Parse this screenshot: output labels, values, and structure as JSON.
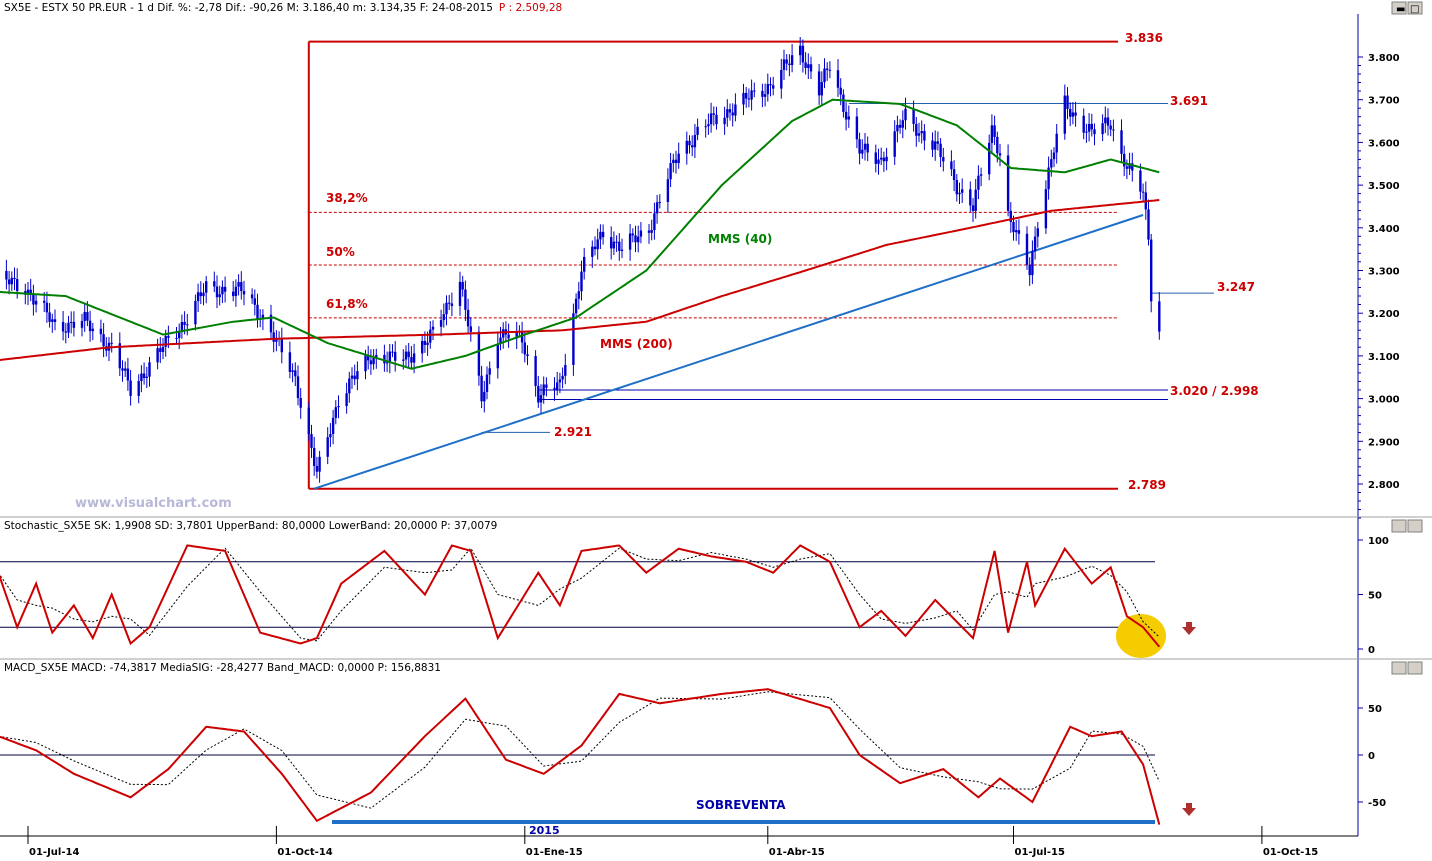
{
  "header": {
    "prefix": "SX5E - ESTX 50 PR.EUR - 1 d Dif. %: -2,78 Dif.: -90,26 M: 3.186,40 m: 3.134,35 F: 24-08-2015",
    "p_value": "P : 2.509,28"
  },
  "stoch_header": "Stochastic_SX5E SK: 1,9908 SD: 3,7801 UpperBand: 80,0000 LowerBand: 20,0000 P: 37,0079",
  "macd_header": "MACD_SX5E MACD: -74,3817 MediaSIG: -28,4277 Band_MACD: 0,0000 P: 156,8831",
  "watermark": "www.visualchart.com",
  "annotations": {
    "fib382": "38,2%",
    "fib50": "50%",
    "fib618": "61,8%",
    "mms40": "MMS (40)",
    "mms200": "MMS (200)",
    "lvl_top": "3.836",
    "lvl_3691": "3.691",
    "lvl_3247": "3.247",
    "lvl_support": "3.020 / 2.998",
    "lvl_2921": "2.921",
    "lvl_bottom": "2.789",
    "sobreventa": "SOBREVENTA",
    "year_marker": "2015"
  },
  "colors": {
    "candle": "#0000cc",
    "ma200": "#cc0000",
    "ma40": "#008000",
    "trendline": "#1e6fc8",
    "annotation": "#cc0000",
    "highlight": "#f5cc00"
  },
  "chart_data": [
    {
      "type": "candlestick",
      "title": "SX5E - ESTX 50 PR.EUR - 1 d",
      "y_ticks": [
        "3.800",
        "3.700",
        "3.600",
        "3.500",
        "3.400",
        "3.300",
        "3.200",
        "3.100",
        "3.000",
        "2.900",
        "2.800"
      ],
      "ylim": [
        2770,
        3880
      ],
      "x_ticks": [
        "01-Jul-14",
        "01-Oct-14",
        "01-Ene-15",
        "01-Abr-15",
        "01-Jul-15",
        "01-Oct-15"
      ],
      "x_dates": [
        "2014-07-01",
        "2014-10-01",
        "2015-01-01",
        "2015-04-01",
        "2015-07-01",
        "2015-10-01"
      ],
      "price_path": [
        [
          "2014-06-20",
          3280
        ],
        [
          "2014-06-30",
          3260
        ],
        [
          "2014-07-11",
          3170
        ],
        [
          "2014-07-22",
          3180
        ],
        [
          "2014-08-01",
          3120
        ],
        [
          "2014-08-08",
          3020
        ],
        [
          "2014-08-20",
          3120
        ],
        [
          "2014-08-29",
          3190
        ],
        [
          "2014-09-05",
          3260
        ],
        [
          "2014-09-19",
          3250
        ],
        [
          "2014-09-25",
          3200
        ],
        [
          "2014-10-08",
          3050
        ],
        [
          "2014-10-16",
          2820
        ],
        [
          "2014-10-24",
          3000
        ],
        [
          "2014-11-05",
          3100
        ],
        [
          "2014-11-17",
          3090
        ],
        [
          "2014-11-28",
          3150
        ],
        [
          "2014-12-05",
          3240
        ],
        [
          "2014-12-08",
          3280
        ],
        [
          "2014-12-16",
          3000
        ],
        [
          "2014-12-22",
          3150
        ],
        [
          "2014-12-31",
          3140
        ],
        [
          "2015-01-06",
          3010
        ],
        [
          "2015-01-14",
          3030
        ],
        [
          "2015-01-22",
          3300
        ],
        [
          "2015-01-30",
          3390
        ],
        [
          "2015-02-06",
          3350
        ],
        [
          "2015-02-16",
          3400
        ],
        [
          "2015-02-27",
          3580
        ],
        [
          "2015-03-11",
          3650
        ],
        [
          "2015-03-24",
          3700
        ],
        [
          "2015-04-03",
          3740
        ],
        [
          "2015-04-13",
          3820
        ],
        [
          "2015-04-20",
          3720
        ],
        [
          "2015-04-24",
          3780
        ],
        [
          "2015-05-05",
          3580
        ],
        [
          "2015-05-13",
          3560
        ],
        [
          "2015-05-22",
          3660
        ],
        [
          "2015-06-02",
          3590
        ],
        [
          "2015-06-10",
          3500
        ],
        [
          "2015-06-16",
          3450
        ],
        [
          "2015-06-23",
          3630
        ],
        [
          "2015-06-26",
          3580
        ],
        [
          "2015-06-29",
          3430
        ],
        [
          "2015-07-07",
          3300
        ],
        [
          "2015-07-10",
          3420
        ],
        [
          "2015-07-20",
          3690
        ],
        [
          "2015-07-30",
          3620
        ],
        [
          "2015-08-06",
          3650
        ],
        [
          "2015-08-10",
          3570
        ],
        [
          "2015-08-14",
          3520
        ],
        [
          "2015-08-18",
          3480
        ],
        [
          "2015-08-20",
          3380
        ],
        [
          "2015-08-21",
          3250
        ],
        [
          "2015-08-24",
          3160
        ]
      ],
      "mms200": [
        [
          "2014-06-20",
          3090
        ],
        [
          "2014-07-31",
          3120
        ],
        [
          "2014-09-30",
          3140
        ],
        [
          "2014-11-30",
          3150
        ],
        [
          "2015-01-15",
          3160
        ],
        [
          "2015-02-15",
          3180
        ],
        [
          "2015-03-15",
          3240
        ],
        [
          "2015-04-15",
          3300
        ],
        [
          "2015-05-15",
          3360
        ],
        [
          "2015-06-15",
          3400
        ],
        [
          "2015-07-15",
          3440
        ],
        [
          "2015-08-24",
          3465
        ]
      ],
      "mms40": [
        [
          "2014-06-20",
          3250
        ],
        [
          "2014-07-15",
          3240
        ],
        [
          "2014-08-20",
          3150
        ],
        [
          "2014-09-15",
          3180
        ],
        [
          "2014-09-30",
          3190
        ],
        [
          "2014-10-20",
          3130
        ],
        [
          "2014-11-20",
          3070
        ],
        [
          "2014-12-10",
          3100
        ],
        [
          "2015-01-01",
          3150
        ],
        [
          "2015-01-20",
          3190
        ],
        [
          "2015-02-15",
          3300
        ],
        [
          "2015-03-15",
          3500
        ],
        [
          "2015-04-10",
          3650
        ],
        [
          "2015-04-25",
          3700
        ],
        [
          "2015-05-20",
          3690
        ],
        [
          "2015-06-10",
          3640
        ],
        [
          "2015-06-30",
          3540
        ],
        [
          "2015-07-20",
          3530
        ],
        [
          "2015-08-06",
          3560
        ],
        [
          "2015-08-24",
          3530
        ]
      ],
      "trendline": [
        [
          "2014-10-15",
          2789
        ],
        [
          "2015-08-18",
          3430
        ]
      ],
      "fibonacci": {
        "high": 3836,
        "low": 2789,
        "levels": [
          {
            "ratio": "38,2%",
            "value": 3436
          },
          {
            "ratio": "50%",
            "value": 3313
          },
          {
            "ratio": "61,8%",
            "value": 3189
          }
        ]
      },
      "levels": [
        {
          "label": "3.836",
          "value": 3836
        },
        {
          "label": "3.691",
          "value": 3691
        },
        {
          "label": "3.247",
          "value": 3247
        },
        {
          "label": "3.020 / 2.998",
          "values": [
            3020,
            2998
          ]
        },
        {
          "label": "2.921",
          "value": 2921
        },
        {
          "label": "2.789",
          "value": 2789
        }
      ]
    },
    {
      "type": "line",
      "title": "Stochastic_SX5E",
      "y_ticks": [
        "100",
        "50",
        "0"
      ],
      "ylim": [
        -10,
        110
      ],
      "bands": [
        80,
        20
      ],
      "sk": [
        [
          "2014-06-20",
          70
        ],
        [
          "2014-06-27",
          20
        ],
        [
          "2014-07-04",
          60
        ],
        [
          "2014-07-10",
          15
        ],
        [
          "2014-07-18",
          40
        ],
        [
          "2014-07-25",
          10
        ],
        [
          "2014-08-01",
          50
        ],
        [
          "2014-08-08",
          5
        ],
        [
          "2014-08-15",
          20
        ],
        [
          "2014-08-29",
          95
        ],
        [
          "2014-09-12",
          90
        ],
        [
          "2014-09-25",
          15
        ],
        [
          "2014-10-10",
          5
        ],
        [
          "2014-10-16",
          10
        ],
        [
          "2014-10-25",
          60
        ],
        [
          "2014-11-10",
          90
        ],
        [
          "2014-11-25",
          50
        ],
        [
          "2014-12-05",
          95
        ],
        [
          "2014-12-12",
          90
        ],
        [
          "2014-12-22",
          10
        ],
        [
          "2015-01-06",
          70
        ],
        [
          "2015-01-14",
          40
        ],
        [
          "2015-01-22",
          90
        ],
        [
          "2015-02-05",
          95
        ],
        [
          "2015-02-15",
          70
        ],
        [
          "2015-02-27",
          92
        ],
        [
          "2015-03-11",
          85
        ],
        [
          "2015-03-24",
          80
        ],
        [
          "2015-04-03",
          70
        ],
        [
          "2015-04-13",
          95
        ],
        [
          "2015-04-24",
          80
        ],
        [
          "2015-05-05",
          20
        ],
        [
          "2015-05-13",
          35
        ],
        [
          "2015-05-22",
          12
        ],
        [
          "2015-06-02",
          45
        ],
        [
          "2015-06-10",
          25
        ],
        [
          "2015-06-16",
          10
        ],
        [
          "2015-06-24",
          90
        ],
        [
          "2015-06-29",
          15
        ],
        [
          "2015-07-06",
          80
        ],
        [
          "2015-07-09",
          40
        ],
        [
          "2015-07-20",
          92
        ],
        [
          "2015-07-30",
          60
        ],
        [
          "2015-08-06",
          75
        ],
        [
          "2015-08-12",
          30
        ],
        [
          "2015-08-18",
          20
        ],
        [
          "2015-08-24",
          2
        ]
      ]
    },
    {
      "type": "line",
      "title": "MACD_SX5E",
      "y_ticks": [
        "50",
        "0",
        "-50"
      ],
      "ylim": [
        -85,
        90
      ],
      "zero_band": 0,
      "macd": [
        [
          "2014-06-20",
          20
        ],
        [
          "2014-07-04",
          5
        ],
        [
          "2014-07-18",
          -20
        ],
        [
          "2014-08-08",
          -45
        ],
        [
          "2014-08-22",
          -15
        ],
        [
          "2014-09-05",
          30
        ],
        [
          "2014-09-19",
          25
        ],
        [
          "2014-10-03",
          -20
        ],
        [
          "2014-10-16",
          -70
        ],
        [
          "2014-11-05",
          -40
        ],
        [
          "2014-11-25",
          20
        ],
        [
          "2014-12-10",
          60
        ],
        [
          "2014-12-25",
          -5
        ],
        [
          "2015-01-08",
          -20
        ],
        [
          "2015-01-22",
          10
        ],
        [
          "2015-02-05",
          65
        ],
        [
          "2015-02-20",
          55
        ],
        [
          "2015-03-15",
          65
        ],
        [
          "2015-04-01",
          70
        ],
        [
          "2015-04-24",
          50
        ],
        [
          "2015-05-05",
          0
        ],
        [
          "2015-05-20",
          -30
        ],
        [
          "2015-06-05",
          -15
        ],
        [
          "2015-06-18",
          -45
        ],
        [
          "2015-06-26",
          -25
        ],
        [
          "2015-07-08",
          -50
        ],
        [
          "2015-07-22",
          30
        ],
        [
          "2015-07-30",
          20
        ],
        [
          "2015-08-10",
          25
        ],
        [
          "2015-08-18",
          -10
        ],
        [
          "2015-08-24",
          -74
        ]
      ]
    }
  ]
}
